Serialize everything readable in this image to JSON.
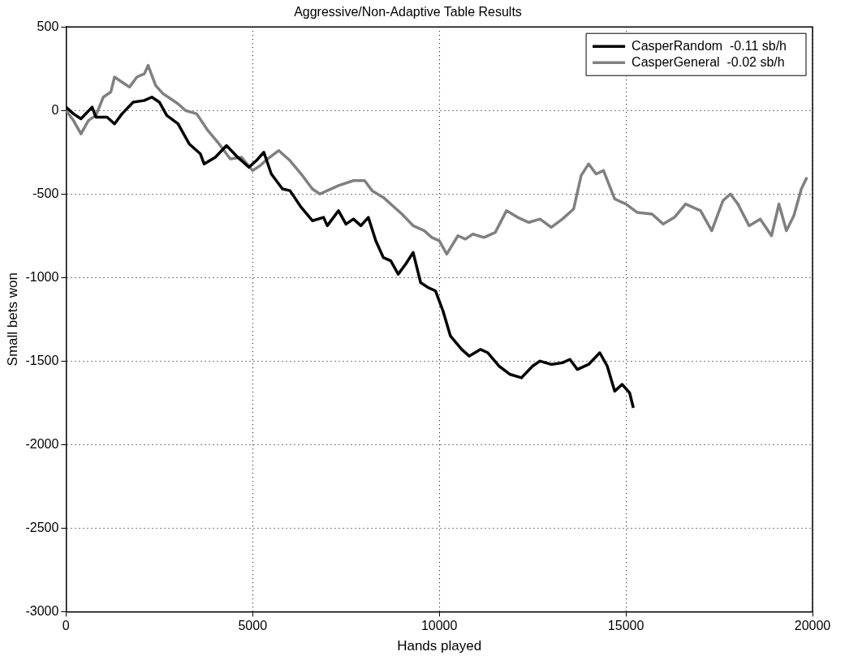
{
  "chart_data": {
    "type": "line",
    "title": "Aggressive/Non-Adaptive Table Results",
    "xlabel": "Hands played",
    "ylabel": "Small bets won",
    "xlim": [
      0,
      20000
    ],
    "xticks": [
      0,
      5000,
      10000,
      15000,
      20000
    ],
    "ylim": [
      -3000,
      500
    ],
    "yticks": [
      -3000,
      -2500,
      -2000,
      -1500,
      -1000,
      -500,
      0,
      500
    ],
    "grid": true,
    "legend": "top right",
    "marker": "none",
    "line_style": "solid",
    "series": [
      {
        "name": "CasperRandom  -0.11 sb/h",
        "color": "#000000",
        "x": [
          0,
          200,
          400,
          700,
          800,
          1100,
          1300,
          1500,
          1800,
          2100,
          2300,
          2500,
          2700,
          3000,
          3300,
          3600,
          3700,
          4000,
          4300,
          4600,
          4900,
          5100,
          5300,
          5500,
          5800,
          6000,
          6300,
          6600,
          6900,
          7000,
          7300,
          7500,
          7700,
          7900,
          8100,
          8300,
          8500,
          8700,
          8900,
          9100,
          9300,
          9500,
          9700,
          9900,
          10100,
          10300,
          10600,
          10800,
          11100,
          11300,
          11600,
          11900,
          12200,
          12500,
          12700,
          13000,
          13300,
          13500,
          13700,
          14000,
          14300,
          14500,
          14700,
          14900,
          15100,
          15200
        ],
        "values": [
          20,
          -20,
          -50,
          20,
          -40,
          -40,
          -80,
          -20,
          50,
          60,
          80,
          50,
          -30,
          -80,
          -200,
          -260,
          -320,
          -280,
          -210,
          -280,
          -340,
          -300,
          -250,
          -380,
          -470,
          -480,
          -580,
          -660,
          -640,
          -690,
          -600,
          -680,
          -650,
          -690,
          -640,
          -780,
          -880,
          -900,
          -980,
          -920,
          -850,
          -1030,
          -1060,
          -1080,
          -1200,
          -1350,
          -1430,
          -1470,
          -1430,
          -1450,
          -1530,
          -1580,
          -1600,
          -1530,
          -1500,
          -1520,
          -1510,
          -1490,
          -1550,
          -1520,
          -1450,
          -1530,
          -1680,
          -1640,
          -1690,
          -1780
        ]
      },
      {
        "name": "CasperGeneral  -0.02 sb/h",
        "color": "#808080",
        "x": [
          0,
          200,
          400,
          600,
          800,
          1000,
          1200,
          1300,
          1500,
          1700,
          1900,
          2100,
          2200,
          2400,
          2600,
          2800,
          3000,
          3200,
          3500,
          3800,
          4100,
          4400,
          4700,
          5000,
          5200,
          5400,
          5700,
          6000,
          6300,
          6600,
          6800,
          7000,
          7300,
          7700,
          8000,
          8200,
          8500,
          8800,
          9000,
          9300,
          9600,
          9800,
          10000,
          10200,
          10500,
          10700,
          10900,
          11200,
          11500,
          11800,
          12100,
          12400,
          12700,
          13000,
          13300,
          13600,
          13800,
          14000,
          14200,
          14400,
          14700,
          15000,
          15300,
          15700,
          16000,
          16300,
          16600,
          17000,
          17300,
          17600,
          17800,
          18000,
          18300,
          18600,
          18900,
          19100,
          19300,
          19500,
          19700,
          19850
        ],
        "values": [
          0,
          -60,
          -140,
          -60,
          -30,
          80,
          110,
          200,
          170,
          140,
          200,
          220,
          270,
          150,
          100,
          70,
          40,
          0,
          -20,
          -120,
          -200,
          -290,
          -280,
          -360,
          -330,
          -290,
          -240,
          -300,
          -380,
          -470,
          -500,
          -480,
          -450,
          -420,
          -420,
          -480,
          -520,
          -580,
          -620,
          -690,
          -720,
          -760,
          -780,
          -860,
          -750,
          -770,
          -740,
          -760,
          -730,
          -600,
          -640,
          -670,
          -650,
          -700,
          -650,
          -590,
          -390,
          -320,
          -380,
          -360,
          -530,
          -560,
          -610,
          -620,
          -680,
          -640,
          -560,
          -600,
          -720,
          -540,
          -500,
          -560,
          -690,
          -650,
          -750,
          -560,
          -720,
          -630,
          -470,
          -400
        ]
      }
    ]
  }
}
